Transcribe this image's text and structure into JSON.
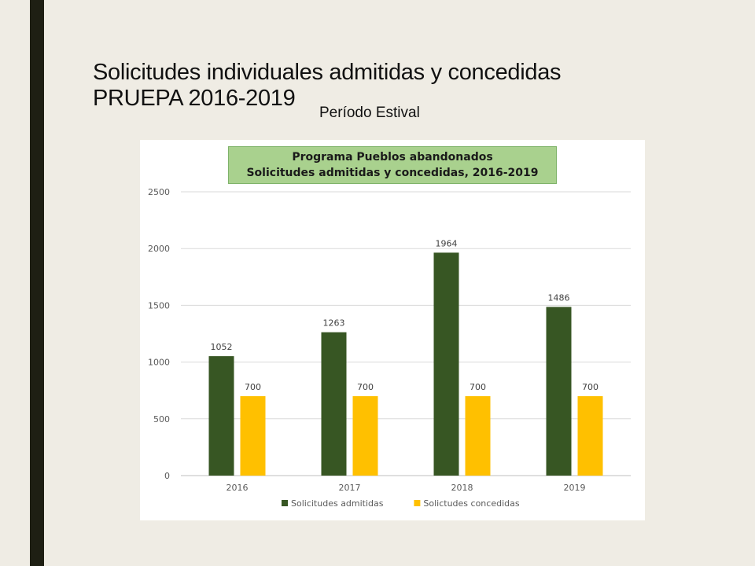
{
  "slide": {
    "title_line1": "Solicitudes individuales admitidas y concedidas",
    "title_line2": "PRUEPA 2016-2019",
    "subtitle": "Período Estival"
  },
  "chart_data": {
    "type": "bar",
    "title": "Programa Pueblos abandonados",
    "subtitle": "Solicitudes admitidas y concedidas, 2016-2019",
    "categories": [
      "2016",
      "2017",
      "2018",
      "2019"
    ],
    "series": [
      {
        "name": "Solicitudes admitidas",
        "values": [
          1052,
          1263,
          1964,
          1486
        ],
        "color": "#375623"
      },
      {
        "name": "Solictudes concedidas",
        "values": [
          700,
          700,
          700,
          700
        ],
        "color": "#ffc000"
      }
    ],
    "yticks": [
      0,
      500,
      1000,
      1500,
      2000,
      2500
    ],
    "ylim": [
      0,
      2500
    ],
    "xlabel": "",
    "ylabel": "",
    "grid": true,
    "legend_position": "bottom",
    "data_labels": true
  }
}
